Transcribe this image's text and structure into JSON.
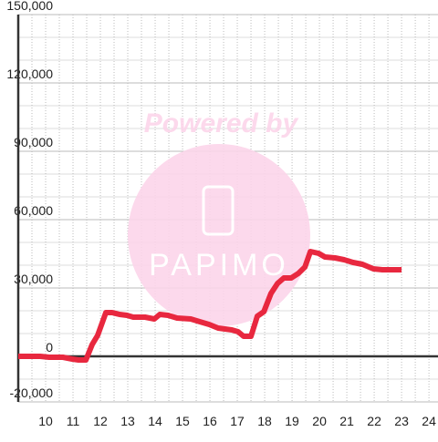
{
  "chart_data": {
    "type": "line",
    "watermark": {
      "top": "Powered by",
      "brand": "PAPIMO"
    },
    "x": [
      9,
      9.8,
      10.13,
      10.63,
      10.97,
      11.2,
      11.47,
      11.7,
      11.9,
      12.2,
      12.43,
      12.7,
      12.97,
      13.2,
      13.63,
      13.97,
      14.17,
      14.47,
      14.8,
      15.3,
      15.63,
      15.97,
      16.3,
      16.8,
      17.03,
      17.23,
      17.5,
      17.73,
      17.97,
      18.23,
      18.47,
      18.7,
      18.97,
      19.23,
      19.47,
      19.67,
      19.97,
      20.2,
      20.57,
      20.9,
      21.23,
      21.57,
      21.97,
      22.3,
      23
    ],
    "series": [
      {
        "color": "#e8283f",
        "values": [
          0,
          0,
          -400,
          -400,
          -1200,
          -1600,
          -1600,
          5200,
          9200,
          19200,
          19200,
          18400,
          18000,
          17200,
          17200,
          16400,
          18400,
          18000,
          16800,
          16400,
          15200,
          14000,
          12400,
          11600,
          10800,
          8800,
          8800,
          17600,
          19600,
          27600,
          32000,
          34400,
          34400,
          36400,
          39200,
          46000,
          45200,
          43600,
          43200,
          42400,
          41200,
          40400,
          38400,
          38000,
          38000
        ]
      }
    ],
    "xlim": [
      9,
      24.33
    ],
    "ylim": [
      -20000,
      150000
    ],
    "xticks": [
      10,
      11,
      12,
      13,
      14,
      15,
      16,
      17,
      18,
      19,
      20,
      21,
      22,
      23,
      24
    ],
    "yticks": [
      {
        "value": -20000,
        "label": "-20,000"
      },
      0,
      {
        "value": 30000,
        "label": "30,000"
      },
      {
        "value": 60000,
        "label": "60,000"
      },
      {
        "value": 90000,
        "label": "90,000"
      },
      {
        "value": 120000,
        "label": "120,000"
      },
      {
        "value": 150000,
        "label": "150,000"
      }
    ],
    "ygrid": [
      -10000,
      10000,
      20000,
      40000,
      50000,
      70000,
      80000,
      100000,
      110000,
      130000,
      140000
    ],
    "xgrid": [
      9.5,
      10.5,
      11.5,
      12.5,
      13.5,
      14.5,
      15.5,
      16.5,
      17.5,
      18.5,
      19.5,
      20.5,
      21.5,
      22.5,
      23.5
    ],
    "grid": true
  }
}
